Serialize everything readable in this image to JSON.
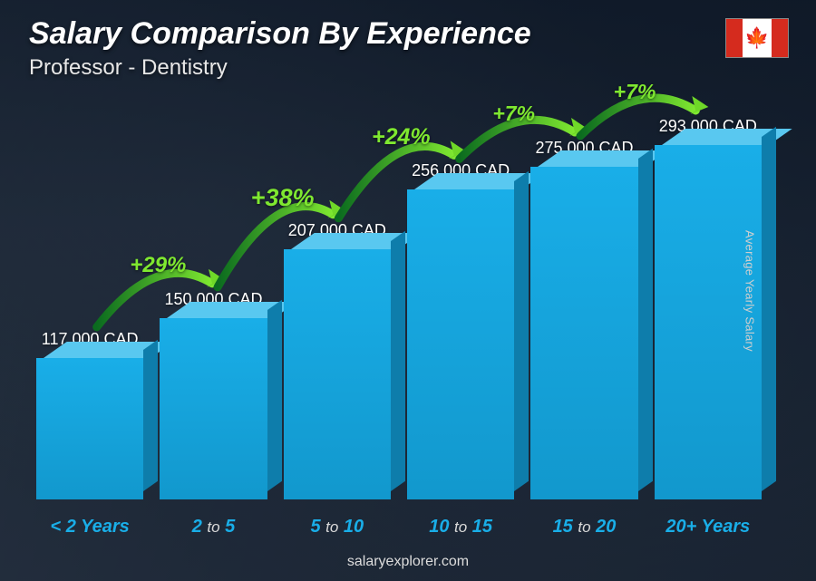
{
  "header": {
    "title": "Salary Comparison By Experience",
    "subtitle": "Professor - Dentistry",
    "flag_country": "Canada"
  },
  "chart": {
    "type": "bar",
    "y_axis_label": "Average Yearly Salary",
    "currency": "CAD",
    "max_value": 293000,
    "bar_front_color": "#19aee8",
    "bar_top_color": "#59c8f0",
    "bar_side_color": "#0e7dab",
    "value_label_color": "#ffffff",
    "value_label_fontsize": 18,
    "xlabel_color": "#19aee8",
    "xlabel_secondary_color": "#d9d9d9",
    "background_base": "#2a3541",
    "arc_gradient_start": "#0b6b1f",
    "arc_gradient_end": "#7fe830",
    "arrowhead_color": "#6fd828",
    "bars": [
      {
        "category_html": "<span class='lt'>&lt; 2</span> Years",
        "value": 117000,
        "label": "117,000 CAD"
      },
      {
        "category_html": "2 <span class='to'>to</span> 5",
        "value": 150000,
        "label": "150,000 CAD"
      },
      {
        "category_html": "5 <span class='to'>to</span> 10",
        "value": 207000,
        "label": "207,000 CAD"
      },
      {
        "category_html": "10 <span class='to'>to</span> 15",
        "value": 256000,
        "label": "256,000 CAD"
      },
      {
        "category_html": "15 <span class='to'>to</span> 20",
        "value": 275000,
        "label": "275,000 CAD"
      },
      {
        "category_html": "20+ Years",
        "value": 293000,
        "label": "293,000 CAD"
      }
    ],
    "increases": [
      {
        "pct": "+29%",
        "fontsize": 24
      },
      {
        "pct": "+38%",
        "fontsize": 27
      },
      {
        "pct": "+24%",
        "fontsize": 25
      },
      {
        "pct": "+7%",
        "fontsize": 23
      },
      {
        "pct": "+7%",
        "fontsize": 23
      }
    ]
  },
  "footer": {
    "site": "salaryexplorer.com"
  }
}
